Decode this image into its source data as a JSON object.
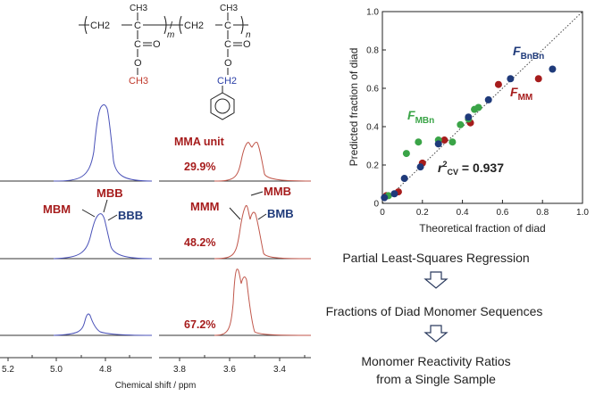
{
  "colors": {
    "red": "#a61c1c",
    "blue": "#1f3a7a",
    "green": "#3aa447",
    "methyl": "#c0392b",
    "ch2": "#2a3ea6",
    "ester_o": "#c0392b",
    "trace_blue": "#4a52b8",
    "trace_red": "#c0564a",
    "black": "#222222"
  },
  "structure": {
    "unit1": {
      "ch3": "CH3",
      "c": "C",
      "ch2": "CH2",
      "carbonyl": "C=O",
      "o": "O",
      "methyl": "CH3",
      "sub": "m"
    },
    "unit2": {
      "ch3": "CH3",
      "c": "C",
      "ch2": "CH2",
      "carbonyl": "C=O",
      "o": "O",
      "benzyl_ch2": "CH2",
      "sub": "n"
    },
    "separator": "/"
  },
  "spectra": {
    "mma_unit_label": "MMA unit",
    "fractions": [
      "29.9%",
      "48.2%",
      "67.2%"
    ],
    "left_labels": {
      "mbm": "MBM",
      "mbb": "MBB",
      "bbb": "BBB"
    },
    "right_labels": {
      "mmm": "MMM",
      "mmb": "MMB",
      "bmb": "BMB"
    },
    "left_ticks": [
      "5.2",
      "5.0",
      "4.8"
    ],
    "right_ticks": [
      "3.8",
      "3.6",
      "3.4"
    ],
    "xlabel": "Chemical shift / ppm"
  },
  "chart_data": {
    "type": "scatter",
    "xlabel": "Theoretical fraction of diad",
    "ylabel": "Predicted fraction of diad",
    "xlim": [
      0,
      1
    ],
    "ylim": [
      0,
      1
    ],
    "ticks": [
      "0",
      "0.2",
      "0.4",
      "0.6",
      "0.8",
      "1.0"
    ],
    "ticks_y": [
      "0",
      "0.2",
      "0.4",
      "0.6",
      "0.8",
      "1.0"
    ],
    "identity_line": true,
    "r2_prefix": "r",
    "r2_sup": "2",
    "r2_sub": "CV",
    "r2_value": " = 0.937",
    "series": [
      {
        "name": "F",
        "subscript": "MM",
        "color": "#a61c1c",
        "points": [
          [
            0.02,
            0.04
          ],
          [
            0.08,
            0.06
          ],
          [
            0.2,
            0.21
          ],
          [
            0.31,
            0.33
          ],
          [
            0.44,
            0.42
          ],
          [
            0.58,
            0.62
          ],
          [
            0.78,
            0.65
          ]
        ]
      },
      {
        "name": "F",
        "subscript": "MBn",
        "color": "#3aa447",
        "points": [
          [
            0.03,
            0.04
          ],
          [
            0.12,
            0.26
          ],
          [
            0.18,
            0.32
          ],
          [
            0.28,
            0.33
          ],
          [
            0.35,
            0.32
          ],
          [
            0.39,
            0.41
          ],
          [
            0.43,
            0.44
          ],
          [
            0.46,
            0.49
          ],
          [
            0.48,
            0.5
          ]
        ]
      },
      {
        "name": "F",
        "subscript": "BnBn",
        "color": "#1f3a7a",
        "points": [
          [
            0.01,
            0.03
          ],
          [
            0.06,
            0.05
          ],
          [
            0.11,
            0.13
          ],
          [
            0.19,
            0.19
          ],
          [
            0.28,
            0.31
          ],
          [
            0.43,
            0.45
          ],
          [
            0.53,
            0.54
          ],
          [
            0.64,
            0.65
          ],
          [
            0.85,
            0.7
          ]
        ]
      }
    ]
  },
  "flow": {
    "steps": [
      "Partial Least-Squares Regression",
      "Fractions of Diad Monomer Sequences",
      "Monomer Reactivity Ratios",
      "from a Single Sample"
    ]
  }
}
